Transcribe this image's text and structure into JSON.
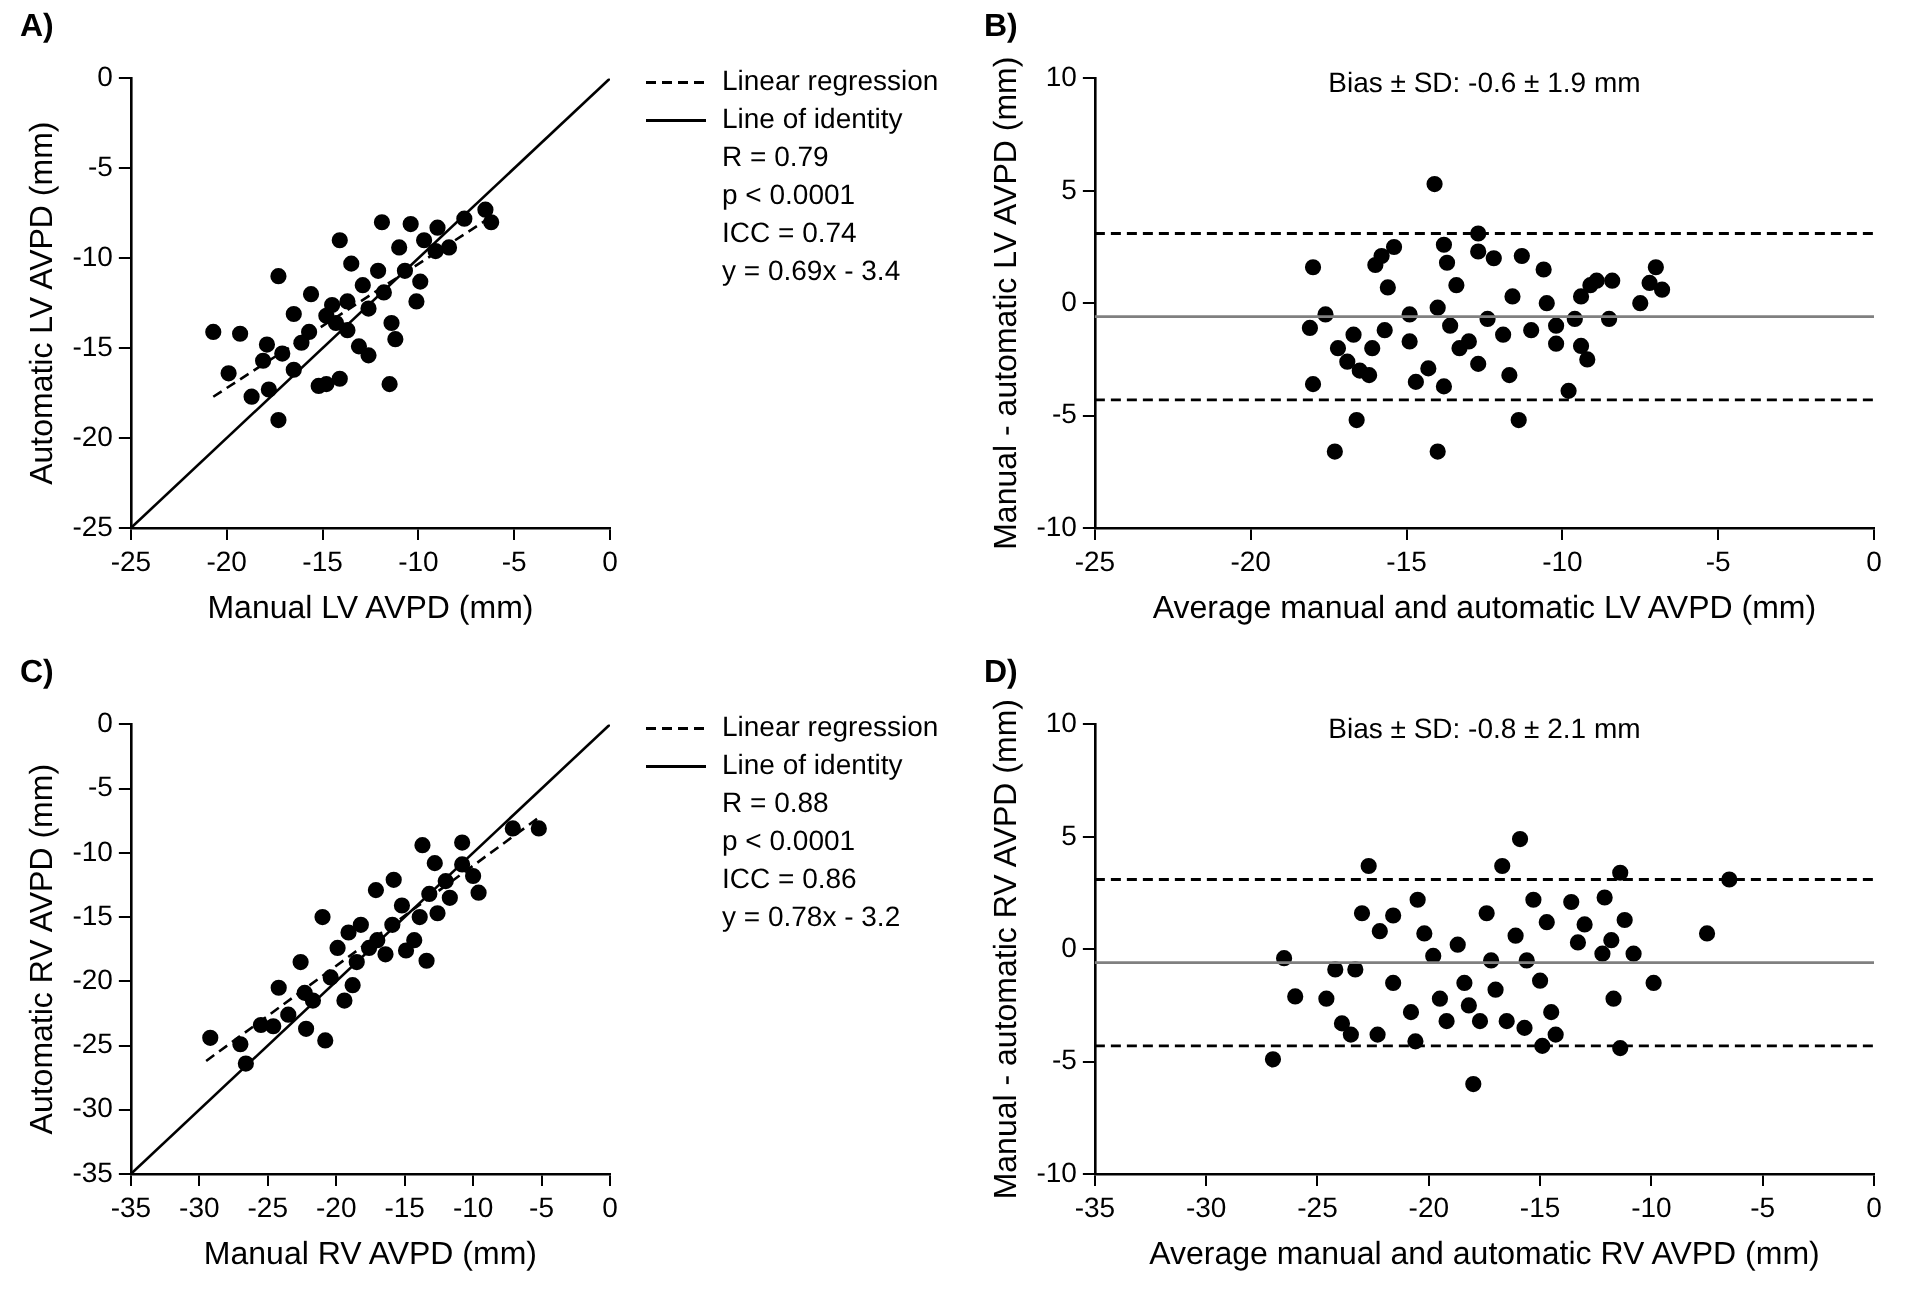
{
  "chart_data": [
    {
      "type": "scatter",
      "title": "A)",
      "xlabel": "Manual LV AVPD (mm)",
      "ylabel": "Automatic LV AVPD (mm)",
      "xlim": [
        -25,
        0
      ],
      "ylim": [
        -25,
        0
      ],
      "xticks": [
        -25,
        -20,
        -15,
        -10,
        -5,
        0
      ],
      "yticks": [
        -25,
        -20,
        -15,
        -10,
        -5,
        0
      ],
      "grid": false,
      "legend": "right",
      "marker": "circle",
      "annotations": [
        "R = 0.79",
        "p < 0.0001",
        "ICC = 0.74",
        "y = 0.69x - 3.4"
      ],
      "series": [
        {
          "type": "scatter",
          "color": "#000000",
          "x": [
            -20.7,
            -19.3,
            -19.9,
            -18.7,
            -17.8,
            -17.3,
            -17.3,
            -17.9,
            -17.1,
            -16.5,
            -15.6,
            -16.5,
            -15.7,
            -15.2,
            -14.8,
            -14.1,
            -14.1,
            -14.8,
            -14.3,
            -13.7,
            -13.5,
            -12.9,
            -12.6,
            -13.1,
            -12.6,
            -11.9,
            -12.1,
            -11.8,
            -11.5,
            -11.2,
            -11.4,
            -11.0,
            -10.7,
            -10.4,
            -10.1,
            -9.9,
            -9.7,
            -9.0,
            -9.1,
            -8.4,
            -7.6,
            -6.5,
            -6.2,
            -13.7,
            -14.5,
            -16.1,
            -18.1
          ],
          "values": [
            -14.1,
            -14.2,
            -16.4,
            -17.7,
            -17.3,
            -19.0,
            -11.0,
            -14.8,
            -15.3,
            -16.2,
            -12.0,
            -13.1,
            -14.1,
            -17.1,
            -17.0,
            -16.7,
            -9.0,
            -13.2,
            -13.6,
            -14.0,
            -10.3,
            -11.5,
            -12.8,
            -14.9,
            -15.4,
            -8.0,
            -10.7,
            -11.9,
            -17.0,
            -14.5,
            -13.6,
            -9.4,
            -10.7,
            -8.1,
            -12.4,
            -11.3,
            -9.0,
            -8.3,
            -9.6,
            -9.4,
            -7.8,
            -7.3,
            -8.0,
            -12.4,
            -12.6,
            -14.7,
            -15.7
          ]
        },
        {
          "type": "line",
          "name": "Linear regression",
          "color": "#000000",
          "line_style": "dashed",
          "marker": "none",
          "x": [
            -20.7,
            -6.2
          ],
          "values": [
            -17.7,
            -7.7
          ]
        },
        {
          "type": "line",
          "name": "Line of identity",
          "color": "#000000",
          "line_style": "solid",
          "marker": "none",
          "x": [
            -25,
            0
          ],
          "values": [
            -25,
            0
          ]
        }
      ]
    },
    {
      "type": "scatter",
      "title": "B)",
      "xlabel": "Average manual and automatic LV AVPD (mm)",
      "ylabel": "Manual - automatic LV AVPD (mm)",
      "xlim": [
        -25,
        0
      ],
      "ylim": [
        -10,
        10
      ],
      "xticks": [
        -25,
        -20,
        -15,
        -10,
        -5,
        0
      ],
      "yticks": [
        -10,
        -5,
        0,
        5,
        10
      ],
      "grid": false,
      "marker": "circle",
      "annotations": [
        "Bias ± SD: -0.6 ± 1.9 mm"
      ],
      "ref_lines": [
        {
          "axis": "y",
          "value": 3.1,
          "line_style": "dashed",
          "color": "#000000"
        },
        {
          "axis": "y",
          "value": -0.6,
          "line_style": "solid",
          "color": "#808080"
        },
        {
          "axis": "y",
          "value": -4.3,
          "line_style": "dashed",
          "color": "#000000"
        }
      ],
      "series": [
        {
          "type": "scatter",
          "color": "#000000",
          "x": [
            -18.0,
            -18.0,
            -18.1,
            -17.6,
            -17.3,
            -17.2,
            -16.9,
            -16.7,
            -16.6,
            -16.5,
            -16.2,
            -16.0,
            -15.8,
            -15.6,
            -15.4,
            -16.1,
            -15.7,
            -14.9,
            -14.9,
            -14.7,
            -14.3,
            -14.1,
            -14.0,
            -14.0,
            -13.8,
            -13.7,
            -13.8,
            -13.6,
            -13.4,
            -13.3,
            -13.0,
            -12.7,
            -12.7,
            -12.7,
            -12.4,
            -12.2,
            -11.9,
            -11.7,
            -11.6,
            -11.4,
            -11.3,
            -11.0,
            -10.6,
            -10.5,
            -10.2,
            -10.2,
            -9.8,
            -9.6,
            -9.4,
            -9.4,
            -9.2,
            -9.1,
            -8.9,
            -8.5,
            -8.4,
            -7.5,
            -7.2,
            -7.0,
            -6.8
          ],
          "values": [
            1.6,
            -3.6,
            -1.1,
            -0.5,
            -6.6,
            -2.0,
            -2.6,
            -1.4,
            -5.2,
            -3.0,
            -3.2,
            1.7,
            2.1,
            0.7,
            2.5,
            -2.0,
            -1.2,
            -0.5,
            -1.7,
            -3.5,
            -2.9,
            5.3,
            -6.6,
            -0.2,
            2.6,
            1.8,
            -3.7,
            -1.0,
            0.8,
            -2.0,
            -1.7,
            3.1,
            2.3,
            -2.7,
            -0.7,
            2.0,
            -1.4,
            -3.2,
            0.3,
            -5.2,
            2.1,
            -1.2,
            1.5,
            0.0,
            -1.0,
            -1.8,
            -3.9,
            -0.7,
            0.3,
            -1.9,
            -2.5,
            0.8,
            1.0,
            -0.7,
            1.0,
            0.0,
            0.9,
            1.6,
            0.6
          ]
        }
      ]
    },
    {
      "type": "scatter",
      "title": "C)",
      "xlabel": "Manual RV AVPD (mm)",
      "ylabel": "Automatic RV AVPD (mm)",
      "xlim": [
        -35,
        0
      ],
      "ylim": [
        -35,
        0
      ],
      "xticks": [
        -35,
        -30,
        -25,
        -20,
        -15,
        -10,
        -5,
        0
      ],
      "yticks": [
        -35,
        -30,
        -25,
        -20,
        -15,
        -10,
        -5,
        0
      ],
      "grid": false,
      "legend": "right",
      "marker": "circle",
      "annotations": [
        "R = 0.88",
        "p < 0.0001",
        "ICC = 0.86",
        "y = 0.78x - 3.2"
      ],
      "series": [
        {
          "type": "scatter",
          "color": "#000000",
          "x": [
            -29.2,
            -27.0,
            -26.6,
            -25.5,
            -24.6,
            -24.2,
            -23.5,
            -22.6,
            -22.2,
            -21.7,
            -20.8,
            -21.0,
            -20.4,
            -19.9,
            -19.4,
            -19.1,
            -18.5,
            -18.2,
            -17.1,
            -17.0,
            -16.4,
            -15.8,
            -15.9,
            -15.2,
            -14.9,
            -14.3,
            -13.9,
            -13.7,
            -13.4,
            -13.2,
            -12.8,
            -12.6,
            -12.0,
            -11.7,
            -10.8,
            -10.8,
            -10.0,
            -9.6,
            -7.1,
            -5.2,
            -22.3,
            -17.6,
            -18.8
          ],
          "values": [
            -24.4,
            -24.9,
            -26.4,
            -23.4,
            -23.5,
            -20.5,
            -22.6,
            -18.5,
            -23.7,
            -21.5,
            -24.6,
            -15.0,
            -19.7,
            -17.4,
            -21.5,
            -16.2,
            -18.5,
            -15.6,
            -12.9,
            -16.8,
            -17.9,
            -12.1,
            -15.6,
            -14.1,
            -17.6,
            -16.8,
            -15.0,
            -9.4,
            -18.4,
            -13.2,
            -10.8,
            -14.7,
            -12.2,
            -13.5,
            -9.2,
            -10.9,
            -11.8,
            -13.1,
            -8.1,
            -8.1,
            -20.9,
            -17.4,
            -20.3
          ]
        },
        {
          "type": "line",
          "name": "Linear regression",
          "color": "#000000",
          "line_style": "dashed",
          "marker": "none",
          "x": [
            -29.5,
            -5
          ],
          "values": [
            -26.2,
            -7.1
          ]
        },
        {
          "type": "line",
          "name": "Line of identity",
          "color": "#000000",
          "line_style": "solid",
          "marker": "none",
          "x": [
            -35,
            0
          ],
          "values": [
            -35,
            0
          ]
        }
      ]
    },
    {
      "type": "scatter",
      "title": "D)",
      "xlabel": "Average manual and automatic RV AVPD (mm)",
      "ylabel": "Manual - automatic RV AVPD (mm)",
      "xlim": [
        -35,
        0
      ],
      "ylim": [
        -10,
        10
      ],
      "xticks": [
        -35,
        -30,
        -25,
        -20,
        -15,
        -10,
        -5,
        0
      ],
      "yticks": [
        -10,
        -5,
        0,
        5,
        10
      ],
      "grid": false,
      "marker": "circle",
      "annotations": [
        "Bias ± SD: -0.8 ± 2.1 mm"
      ],
      "ref_lines": [
        {
          "axis": "y",
          "value": 3.1,
          "line_style": "dashed",
          "color": "#000000"
        },
        {
          "axis": "y",
          "value": -0.6,
          "line_style": "solid",
          "color": "#808080"
        },
        {
          "axis": "y",
          "value": -4.3,
          "line_style": "dashed",
          "color": "#000000"
        }
      ],
      "series": [
        {
          "type": "scatter",
          "color": "#000000",
          "x": [
            -27.0,
            -26.5,
            -26.0,
            -24.6,
            -24.2,
            -23.9,
            -23.5,
            -23.3,
            -23.0,
            -22.7,
            -22.3,
            -22.2,
            -21.6,
            -21.6,
            -20.8,
            -20.5,
            -20.6,
            -20.2,
            -19.8,
            -19.5,
            -19.2,
            -18.7,
            -18.4,
            -18.2,
            -18.0,
            -17.7,
            -17.4,
            -17.2,
            -16.7,
            -17.0,
            -16.5,
            -16.1,
            -15.9,
            -15.7,
            -15.6,
            -15.3,
            -15.0,
            -14.7,
            -14.5,
            -14.3,
            -14.9,
            -13.6,
            -13.3,
            -13.0,
            -12.2,
            -12.1,
            -11.8,
            -11.7,
            -11.4,
            -11.4,
            -11.2,
            -10.8,
            -9.9,
            -7.5,
            -6.5
          ],
          "values": [
            -4.9,
            -0.4,
            -2.1,
            -2.2,
            -0.9,
            -3.3,
            -3.8,
            -0.9,
            1.6,
            3.7,
            -3.8,
            0.8,
            1.5,
            -1.5,
            -2.8,
            2.2,
            -4.1,
            0.7,
            -0.3,
            -2.2,
            -3.2,
            0.2,
            -1.5,
            -2.5,
            -6.0,
            -3.2,
            1.6,
            -0.5,
            3.7,
            -1.8,
            -3.2,
            0.6,
            4.9,
            -3.5,
            -0.5,
            2.2,
            -1.4,
            1.2,
            -2.8,
            -3.8,
            -4.3,
            2.1,
            0.3,
            1.1,
            -0.2,
            2.3,
            0.4,
            -2.2,
            -4.4,
            3.4,
            1.3,
            -0.2,
            -1.5,
            0.7,
            3.1
          ]
        }
      ]
    }
  ]
}
